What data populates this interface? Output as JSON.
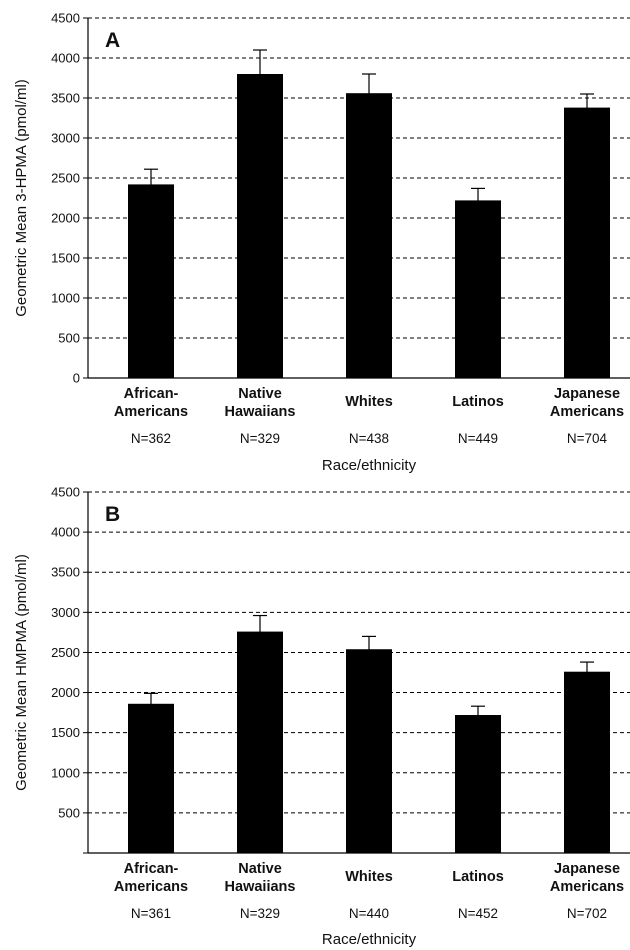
{
  "chart_data": [
    {
      "type": "bar",
      "panel_label": "A",
      "ylabel": "Geometric Mean 3-HPMA (pmol/ml)",
      "xlabel": "Race/ethnicity",
      "ylim": [
        0,
        4500
      ],
      "yticks": [
        "0",
        "500",
        "1000",
        "1500",
        "2000",
        "2500",
        "3000",
        "3500",
        "4000",
        "4500"
      ],
      "grid": "horizontal dashed",
      "categories": [
        [
          "African-",
          "Americans"
        ],
        [
          "Native",
          "Hawaiians"
        ],
        [
          "Whites"
        ],
        [
          "Latinos"
        ],
        [
          "Japanese",
          "Americans"
        ]
      ],
      "n_labels": [
        "N=362",
        "N=329",
        "N=438",
        "N=449",
        "N=704"
      ],
      "values": [
        2420,
        3800,
        3560,
        2220,
        3380
      ],
      "error_low": [
        2230,
        3500,
        3320,
        2070,
        3200
      ],
      "error_high": [
        2610,
        4100,
        3800,
        2370,
        3550
      ],
      "bar_color": "#000000"
    },
    {
      "type": "bar",
      "panel_label": "B",
      "ylabel": "Geometric Mean HMPMA (pmol/ml)",
      "xlabel": "Race/ethnicity",
      "ylim": [
        0,
        4500
      ],
      "yticks": [
        "",
        "500",
        "1000",
        "1500",
        "2000",
        "2500",
        "3000",
        "3500",
        "4000",
        "4500"
      ],
      "grid": "horizontal dashed",
      "categories": [
        [
          "African-",
          "Americans"
        ],
        [
          "Native",
          "Hawaiians"
        ],
        [
          "Whites"
        ],
        [
          "Latinos"
        ],
        [
          "Japanese",
          "Americans"
        ]
      ],
      "n_labels": [
        "N=361",
        "N=329",
        "N=440",
        "N=452",
        "N=702"
      ],
      "values": [
        1860,
        2760,
        2540,
        1720,
        2260
      ],
      "error_low": [
        1740,
        2580,
        2390,
        1620,
        2150
      ],
      "error_high": [
        1990,
        2960,
        2700,
        1830,
        2380
      ],
      "bar_color": "#000000"
    }
  ]
}
